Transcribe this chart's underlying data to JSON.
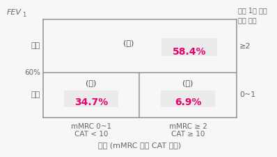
{
  "title_top_right": "지난 1년 동안\n악화 횟수",
  "fev_label": "FEV",
  "fev_sub": "1",
  "xlabel": "증상 (mMRC 또는 CAT 점수)",
  "col_label_1a": "mMRC 0~1",
  "col_label_1b": "CAT < 10",
  "col_label_2a": "mMRC ≥ 2",
  "col_label_2b": "CAT ≥ 10",
  "left_label_top": "이만",
  "left_label_mid": "60%",
  "left_label_bot": "이상",
  "right_label_top": "≥2",
  "right_label_bot": "0~1",
  "cell_da_label": "(다)",
  "cell_da_value": "58.4%",
  "cell_ga_label": "(가)",
  "cell_ga_value": "34.7%",
  "cell_na_label": "(나)",
  "cell_na_value": "6.9%",
  "grid_color": "#999999",
  "value_color": "#e8006e",
  "label_color": "#444444",
  "text_color": "#666666",
  "shade_color": "#ebebeb",
  "fig_bg": "#f7f7f7"
}
